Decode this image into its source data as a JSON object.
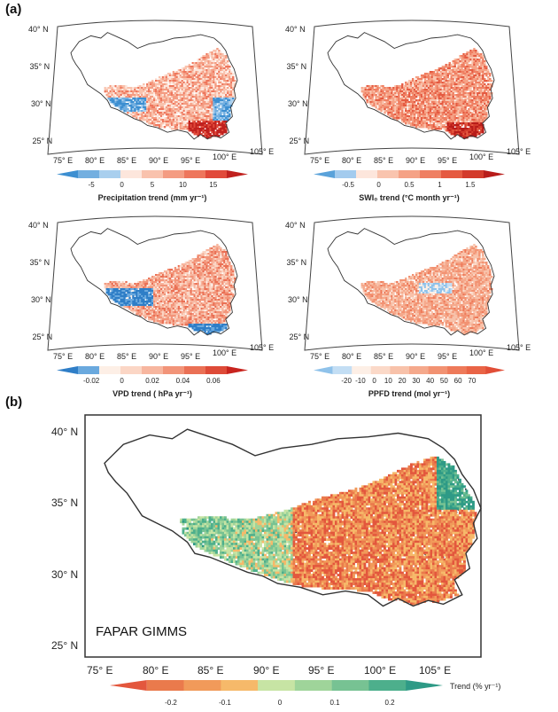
{
  "panel_a_label": "(a)",
  "panel_b_label": "(b)",
  "small_lat_labels": [
    "40° N",
    "35° N",
    "30° N",
    "25° N"
  ],
  "small_lon_labels": [
    "75° E",
    "80° E",
    "85° E",
    "90° E",
    "95° E",
    "100° E",
    "105° E"
  ],
  "maps": [
    {
      "id": "precip",
      "colorbar_title": "Precipitation trend (mm yr⁻¹)",
      "ticks": [
        "-5",
        "0",
        "5",
        "10",
        "15"
      ],
      "colors": [
        "#3d8fd1",
        "#73afe0",
        "#a9cfee",
        "#fde6dc",
        "#f9c2ad",
        "#f49c82",
        "#ee765c",
        "#e14a3a",
        "#c0211e"
      ]
    },
    {
      "id": "swi",
      "colorbar_title": "SWI₀ trend (°C month yr⁻¹)",
      "ticks": [
        "-0.5",
        "0",
        "0.5",
        "1",
        "1.5"
      ],
      "colors": [
        "#5aa2da",
        "#a3cbee",
        "#fde6dc",
        "#f9c4ae",
        "#f5a286",
        "#ef7f62",
        "#e55a41",
        "#d33a2b",
        "#b81c1a"
      ]
    },
    {
      "id": "vpd",
      "colorbar_title": "VPD trend ( hPa yr⁻¹)",
      "ticks": [
        "-0.02",
        "0",
        "0.02",
        "0.04",
        "0.06"
      ],
      "colors": [
        "#2f7ec7",
        "#6aa9de",
        "#fdefe6",
        "#fbd6c5",
        "#f7b69f",
        "#f29479",
        "#ea7055",
        "#de4b38",
        "#c8241e"
      ]
    },
    {
      "id": "ppfd",
      "colorbar_title": "PPFD trend (mol yr⁻¹)",
      "ticks": [
        "-20",
        "-10",
        "0",
        "10",
        "20",
        "30",
        "40",
        "50",
        "60",
        "70"
      ],
      "colors": [
        "#8fc2ea",
        "#c3def4",
        "#fdefe6",
        "#fbd9c8",
        "#f8c2aa",
        "#f5a98c",
        "#f29272",
        "#ee7a5a",
        "#e96446",
        "#e14e37"
      ]
    }
  ],
  "main_map": {
    "title": "FAPAR GIMMS",
    "lat_labels": [
      "40° N",
      "35° N",
      "30° N",
      "25° N"
    ],
    "lon_labels": [
      "75° E",
      "80° E",
      "85° E",
      "90° E",
      "95° E",
      "100° E",
      "105° E"
    ],
    "colorbar_title": "Trend (% yr⁻¹)",
    "ticks": [
      "-0.2",
      "-0.1",
      "0",
      "0.1",
      "0.2"
    ],
    "colors": [
      "#e3573d",
      "#ea7a4c",
      "#f19a5a",
      "#f6b96a",
      "#c7e4a4",
      "#9fd49a",
      "#77c293",
      "#4daf8c",
      "#2e9a86"
    ]
  }
}
